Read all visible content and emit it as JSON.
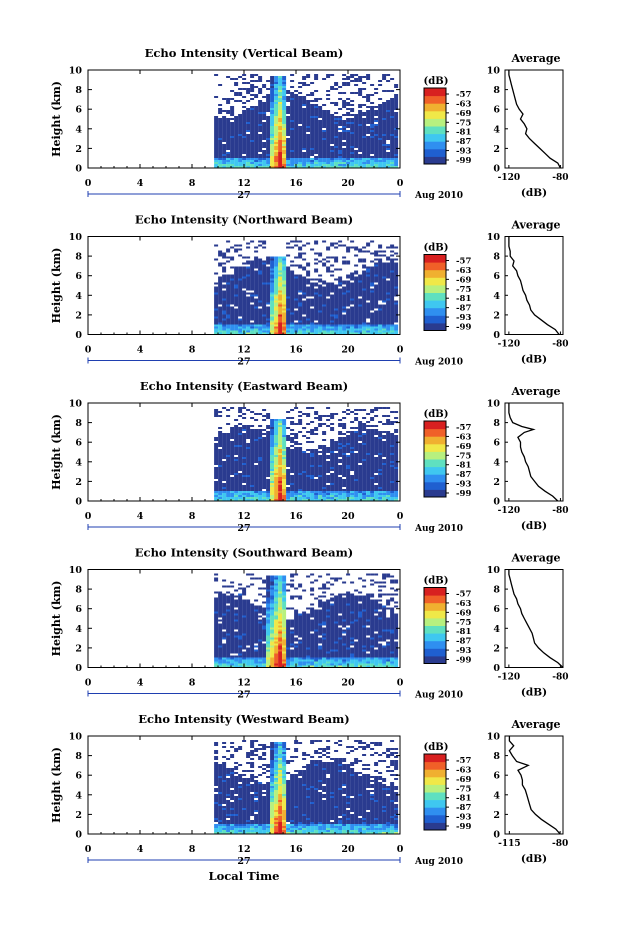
{
  "chart_data": [
    {
      "type": "heatmap",
      "title": "Echo Intensity (Vertical Beam)",
      "ylabel": "Height (km)",
      "yticks": [
        "0",
        "2",
        "4",
        "6",
        "8",
        "10"
      ],
      "xticks": [
        "0",
        "4",
        "8",
        "12",
        "16",
        "20",
        "0"
      ],
      "day_label": "27",
      "month_label": "Aug 2010",
      "colorbar_unit": "(dB)",
      "colorbar_ticks": [
        "-57",
        "-63",
        "-69",
        "-75",
        "-81",
        "-87",
        "-93",
        "-99"
      ],
      "ylim": [
        0,
        10
      ],
      "xlim": [
        0,
        24
      ],
      "echo_start_hour": 9.7,
      "core_hours": [
        14.2,
        15.0
      ],
      "core_top_km": 9.5,
      "average": {
        "title": "Average",
        "xlabel": "(dB)",
        "xticks": [
          "-120",
          "-80"
        ],
        "yticks": [
          "0",
          "2",
          "4",
          "6",
          "8",
          "10"
        ],
        "profile": [
          [
            -80,
            0
          ],
          [
            -82,
            0.5
          ],
          [
            -88,
            1
          ],
          [
            -92,
            1.5
          ],
          [
            -96,
            2
          ],
          [
            -100,
            2.5
          ],
          [
            -104,
            3
          ],
          [
            -107,
            3.5
          ],
          [
            -106,
            4
          ],
          [
            -108,
            4.5
          ],
          [
            -111,
            5
          ],
          [
            -109,
            5.5
          ],
          [
            -112,
            6
          ],
          [
            -114,
            6.5
          ],
          [
            -115,
            7
          ],
          [
            -116,
            7.5
          ],
          [
            -117,
            8
          ],
          [
            -118,
            8.5
          ],
          [
            -119,
            9
          ],
          [
            -120,
            9.5
          ],
          [
            -120,
            10
          ]
        ]
      }
    },
    {
      "type": "heatmap",
      "title": "Echo Intensity (Northward Beam)",
      "ylabel": "Height (km)",
      "yticks": [
        "0",
        "2",
        "4",
        "6",
        "8",
        "10"
      ],
      "xticks": [
        "0",
        "4",
        "8",
        "12",
        "16",
        "20",
        "0"
      ],
      "day_label": "27",
      "month_label": "Aug 2010",
      "colorbar_unit": "(dB)",
      "colorbar_ticks": [
        "-57",
        "-63",
        "-69",
        "-75",
        "-81",
        "-87",
        "-93",
        "-99"
      ],
      "ylim": [
        0,
        10
      ],
      "xlim": [
        0,
        24
      ],
      "echo_start_hour": 9.7,
      "core_hours": [
        14.3,
        15.1
      ],
      "core_top_km": 8.0,
      "average": {
        "title": "Average",
        "xlabel": "(dB)",
        "xticks": [
          "-120",
          "-80"
        ],
        "yticks": [
          "0",
          "2",
          "4",
          "6",
          "8",
          "10"
        ],
        "profile": [
          [
            -81,
            0
          ],
          [
            -84,
            0.5
          ],
          [
            -90,
            1
          ],
          [
            -95,
            1.5
          ],
          [
            -100,
            2
          ],
          [
            -103,
            2.5
          ],
          [
            -104,
            3
          ],
          [
            -106,
            3.5
          ],
          [
            -107,
            4
          ],
          [
            -109,
            4.5
          ],
          [
            -110,
            5
          ],
          [
            -111,
            5.5
          ],
          [
            -113,
            6
          ],
          [
            -114,
            6.5
          ],
          [
            -117,
            7
          ],
          [
            -116,
            7.5
          ],
          [
            -119,
            8
          ],
          [
            -119,
            8.5
          ],
          [
            -120,
            9
          ],
          [
            -120,
            9.5
          ],
          [
            -120,
            10
          ]
        ]
      }
    },
    {
      "type": "heatmap",
      "title": "Echo Intensity (Eastward Beam)",
      "ylabel": "Height (km)",
      "yticks": [
        "0",
        "2",
        "4",
        "6",
        "8",
        "10"
      ],
      "xticks": [
        "0",
        "4",
        "8",
        "12",
        "16",
        "20",
        "0"
      ],
      "day_label": "27",
      "month_label": "Aug 2010",
      "colorbar_unit": "(dB)",
      "colorbar_ticks": [
        "-57",
        "-63",
        "-69",
        "-75",
        "-81",
        "-87",
        "-93",
        "-99"
      ],
      "ylim": [
        0,
        10
      ],
      "xlim": [
        0,
        24
      ],
      "echo_start_hour": 9.7,
      "core_hours": [
        14.2,
        15.0
      ],
      "core_top_km": 8.5,
      "average": {
        "title": "Average",
        "xlabel": "(dB)",
        "xticks": [
          "-120",
          "-80"
        ],
        "yticks": [
          "0",
          "2",
          "4",
          "6",
          "8",
          "10"
        ],
        "profile": [
          [
            -82,
            0
          ],
          [
            -86,
            0.5
          ],
          [
            -92,
            1
          ],
          [
            -97,
            1.5
          ],
          [
            -100,
            2
          ],
          [
            -103,
            2.5
          ],
          [
            -104,
            3
          ],
          [
            -105,
            3.5
          ],
          [
            -107,
            4
          ],
          [
            -108,
            4.5
          ],
          [
            -110,
            5
          ],
          [
            -111,
            5.5
          ],
          [
            -111,
            6
          ],
          [
            -113,
            6.5
          ],
          [
            -108,
            7
          ],
          [
            -101,
            7.3
          ],
          [
            -110,
            7.6
          ],
          [
            -117,
            8
          ],
          [
            -119,
            8.5
          ],
          [
            -120,
            9
          ],
          [
            -120,
            10
          ]
        ]
      }
    },
    {
      "type": "heatmap",
      "title": "Echo Intensity (Southward Beam)",
      "ylabel": "Height (km)",
      "yticks": [
        "0",
        "2",
        "4",
        "6",
        "8",
        "10"
      ],
      "xticks": [
        "0",
        "4",
        "8",
        "12",
        "16",
        "20",
        "0"
      ],
      "day_label": "27",
      "month_label": "Aug 2010",
      "colorbar_unit": "(dB)",
      "colorbar_ticks": [
        "-57",
        "-63",
        "-69",
        "-75",
        "-81",
        "-87",
        "-93",
        "-99"
      ],
      "ylim": [
        0,
        10
      ],
      "xlim": [
        0,
        24
      ],
      "echo_start_hour": 9.7,
      "core_hours": [
        14.0,
        15.2
      ],
      "core_top_km": 9.5,
      "average": {
        "title": "Average",
        "xlabel": "(dB)",
        "xticks": [
          "-120",
          "-80"
        ],
        "yticks": [
          "0",
          "2",
          "4",
          "6",
          "8",
          "10"
        ],
        "profile": [
          [
            -78,
            0
          ],
          [
            -82,
            0.5
          ],
          [
            -88,
            1
          ],
          [
            -93,
            1.5
          ],
          [
            -97,
            2
          ],
          [
            -100,
            2.5
          ],
          [
            -101,
            3
          ],
          [
            -102,
            3.5
          ],
          [
            -104,
            4
          ],
          [
            -106,
            4.5
          ],
          [
            -108,
            5
          ],
          [
            -110,
            5.5
          ],
          [
            -111,
            6
          ],
          [
            -113,
            6.5
          ],
          [
            -114,
            7
          ],
          [
            -116,
            7.5
          ],
          [
            -117,
            8
          ],
          [
            -118,
            8.5
          ],
          [
            -119,
            9
          ],
          [
            -120,
            9.5
          ],
          [
            -120,
            10
          ]
        ]
      }
    },
    {
      "type": "heatmap",
      "title": "Echo Intensity (Westward Beam)",
      "ylabel": "Height (km)",
      "yticks": [
        "0",
        "2",
        "4",
        "6",
        "8",
        "10"
      ],
      "xticks": [
        "0",
        "4",
        "8",
        "12",
        "16",
        "20",
        "0"
      ],
      "day_label": "27",
      "month_label": "Aug 2010",
      "colorbar_unit": "(dB)",
      "colorbar_ticks": [
        "-57",
        "-63",
        "-69",
        "-75",
        "-81",
        "-87",
        "-93",
        "-99"
      ],
      "ylim": [
        0,
        10
      ],
      "xlim": [
        0,
        24
      ],
      "xlabel": "Local Time",
      "echo_start_hour": 9.7,
      "core_hours": [
        14.2,
        15.0
      ],
      "core_top_km": 9.5,
      "average": {
        "title": "Average",
        "xlabel": "(dB)",
        "xticks": [
          "-115",
          "-80"
        ],
        "yticks": [
          "0",
          "2",
          "4",
          "6",
          "8",
          "10"
        ],
        "profile": [
          [
            -80,
            0
          ],
          [
            -83,
            0.5
          ],
          [
            -88,
            1
          ],
          [
            -93,
            1.5
          ],
          [
            -97,
            2
          ],
          [
            -100,
            2.5
          ],
          [
            -101,
            3
          ],
          [
            -102,
            3.5
          ],
          [
            -103,
            4
          ],
          [
            -104,
            4.5
          ],
          [
            -106,
            5
          ],
          [
            -106,
            5.5
          ],
          [
            -107,
            6
          ],
          [
            -109,
            6.5
          ],
          [
            -102,
            7
          ],
          [
            -110,
            7.4
          ],
          [
            -113,
            8
          ],
          [
            -115,
            8.5
          ],
          [
            -112,
            9
          ],
          [
            -115,
            9.5
          ],
          [
            -115,
            10
          ]
        ]
      }
    }
  ],
  "colors": {
    "colorscale": [
      "#2a3b8f",
      "#1f5fd0",
      "#2f8ff0",
      "#3fc7f0",
      "#5fe0c0",
      "#b7f07f",
      "#f0e848",
      "#f0b030",
      "#f06028",
      "#d82020"
    ],
    "background_echo": "#2a3b8f"
  }
}
